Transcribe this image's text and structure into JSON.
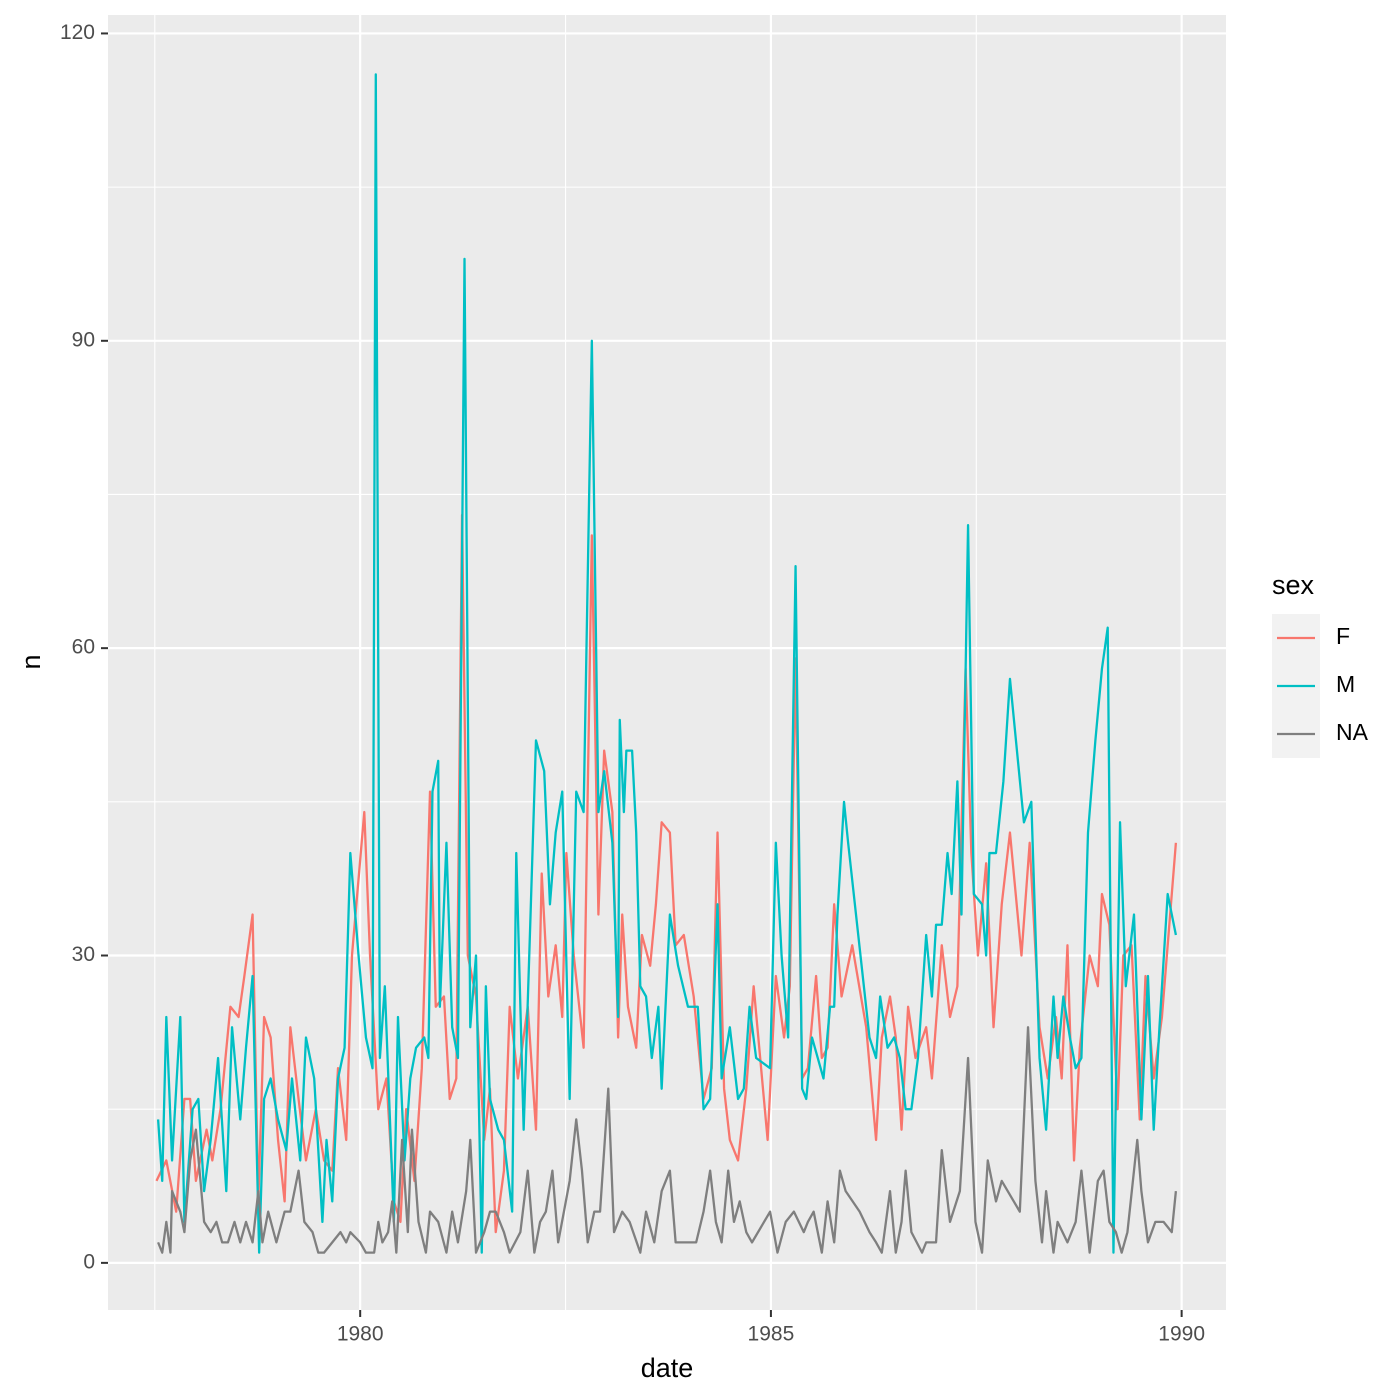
{
  "chart_data": {
    "type": "line",
    "x_label": "date",
    "y_label": "n",
    "legend_title": "sex",
    "legend_position": "right",
    "grid": true,
    "xlim": [
      1976.93,
      1990.54
    ],
    "xticks": [
      1980,
      1985,
      1990
    ],
    "minor_xticks": [
      1977.5,
      1982.5,
      1987.5
    ],
    "ylim": [
      -4.6,
      121.8
    ],
    "yticks": [
      0,
      30,
      60,
      90,
      120
    ],
    "minor_yticks": [
      15,
      45,
      75,
      105
    ],
    "series": [
      {
        "name": "F",
        "color": "#f8766d",
        "x": [
          1977.52,
          1977.64,
          1977.76,
          1977.86,
          1977.93,
          1978.0,
          1978.13,
          1978.2,
          1978.3,
          1978.42,
          1978.52,
          1978.59,
          1978.69,
          1978.76,
          1978.83,
          1978.91,
          1979.0,
          1979.08,
          1979.15,
          1979.25,
          1979.34,
          1979.46,
          1979.56,
          1979.66,
          1979.73,
          1979.83,
          1979.9,
          1980.05,
          1980.12,
          1980.22,
          1980.32,
          1980.41,
          1980.49,
          1980.56,
          1980.66,
          1980.75,
          1980.85,
          1980.92,
          1981.02,
          1981.09,
          1981.17,
          1981.24,
          1981.31,
          1981.41,
          1981.51,
          1981.58,
          1981.65,
          1981.75,
          1981.82,
          1981.92,
          1982.04,
          1982.14,
          1982.21,
          1982.29,
          1982.38,
          1982.46,
          1982.51,
          1982.6,
          1982.72,
          1982.82,
          1982.9,
          1982.97,
          1983.07,
          1983.14,
          1983.19,
          1983.26,
          1983.36,
          1983.43,
          1983.53,
          1983.6,
          1983.67,
          1983.77,
          1983.84,
          1983.94,
          1984.06,
          1984.18,
          1984.28,
          1984.35,
          1984.43,
          1984.5,
          1984.6,
          1984.7,
          1984.79,
          1984.96,
          1985.06,
          1985.16,
          1985.23,
          1985.3,
          1985.38,
          1985.45,
          1985.55,
          1985.62,
          1985.69,
          1985.77,
          1985.86,
          1985.99,
          1986.16,
          1986.28,
          1986.35,
          1986.45,
          1986.52,
          1986.59,
          1986.67,
          1986.76,
          1986.89,
          1986.96,
          1987.08,
          1987.18,
          1987.27,
          1987.37,
          1987.44,
          1987.52,
          1987.62,
          1987.71,
          1987.81,
          1987.91,
          1988.05,
          1988.15,
          1988.27,
          1988.37,
          1988.47,
          1988.54,
          1988.61,
          1988.69,
          1988.76,
          1988.88,
          1988.98,
          1989.03,
          1989.12,
          1989.22,
          1989.29,
          1989.39,
          1989.49,
          1989.56,
          1989.66,
          1989.76,
          1989.83,
          1989.93
        ],
        "values": [
          8,
          10,
          5,
          16,
          16,
          8,
          13,
          10,
          15,
          25,
          24,
          28,
          34,
          6,
          24,
          22,
          12,
          6,
          23,
          16,
          10,
          15,
          10,
          9,
          19,
          12,
          30,
          44,
          30,
          15,
          18,
          6,
          4,
          15,
          8,
          19,
          46,
          25,
          26,
          16,
          18,
          73,
          30,
          26,
          12,
          17,
          3,
          9,
          25,
          18,
          25,
          13,
          38,
          26,
          31,
          24,
          40,
          30,
          21,
          71,
          34,
          50,
          44,
          22,
          34,
          25,
          21,
          32,
          29,
          35,
          43,
          42,
          31,
          32,
          26,
          16,
          19,
          42,
          17,
          12,
          10,
          17,
          27,
          12,
          28,
          22,
          27,
          59,
          18,
          19,
          28,
          20,
          21,
          35,
          26,
          31,
          23,
          12,
          22,
          26,
          22,
          13,
          25,
          20,
          23,
          18,
          31,
          24,
          27,
          58,
          40,
          30,
          39,
          23,
          35,
          42,
          30,
          41,
          23,
          18,
          24,
          18,
          31,
          10,
          21,
          30,
          27,
          36,
          33,
          15,
          30,
          31,
          14,
          28,
          18,
          24,
          31,
          41
        ]
      },
      {
        "name": "M",
        "color": "#00bfc4",
        "x": [
          1977.54,
          1977.59,
          1977.64,
          1977.71,
          1977.81,
          1977.86,
          1977.96,
          1978.03,
          1978.1,
          1978.18,
          1978.27,
          1978.37,
          1978.44,
          1978.54,
          1978.61,
          1978.69,
          1978.77,
          1978.83,
          1978.91,
          1979.0,
          1979.1,
          1979.17,
          1979.27,
          1979.34,
          1979.44,
          1979.54,
          1979.59,
          1979.66,
          1979.73,
          1979.81,
          1979.88,
          1979.98,
          1980.07,
          1980.15,
          1980.19,
          1980.24,
          1980.3,
          1980.41,
          1980.46,
          1980.54,
          1980.61,
          1980.68,
          1980.78,
          1980.83,
          1980.88,
          1980.95,
          1980.97,
          1981.05,
          1981.12,
          1981.19,
          1981.27,
          1981.34,
          1981.41,
          1981.48,
          1981.53,
          1981.58,
          1981.68,
          1981.75,
          1981.85,
          1981.9,
          1981.99,
          1982.07,
          1982.14,
          1982.24,
          1982.31,
          1982.38,
          1982.46,
          1982.55,
          1982.63,
          1982.72,
          1982.82,
          1982.9,
          1982.97,
          1983.07,
          1983.14,
          1983.16,
          1983.21,
          1983.24,
          1983.31,
          1983.36,
          1983.41,
          1983.48,
          1983.55,
          1983.63,
          1983.67,
          1983.77,
          1983.87,
          1983.99,
          1984.11,
          1984.18,
          1984.26,
          1984.35,
          1984.4,
          1984.5,
          1984.6,
          1984.67,
          1984.74,
          1984.82,
          1984.99,
          1985.06,
          1985.13,
          1985.21,
          1985.3,
          1985.38,
          1985.43,
          1985.5,
          1985.57,
          1985.64,
          1985.72,
          1985.77,
          1985.81,
          1985.89,
          1985.94,
          1986.2,
          1986.28,
          1986.33,
          1986.42,
          1986.5,
          1986.57,
          1986.64,
          1986.71,
          1986.79,
          1986.89,
          1986.96,
          1987.01,
          1987.08,
          1987.15,
          1987.2,
          1987.27,
          1987.32,
          1987.4,
          1987.47,
          1987.57,
          1987.62,
          1987.66,
          1987.74,
          1987.83,
          1987.91,
          1988.08,
          1988.17,
          1988.27,
          1988.35,
          1988.44,
          1988.49,
          1988.56,
          1988.64,
          1988.71,
          1988.78,
          1988.86,
          1988.95,
          1989.03,
          1989.1,
          1989.17,
          1989.25,
          1989.32,
          1989.42,
          1989.51,
          1989.59,
          1989.66,
          1989.73,
          1989.83,
          1989.93
        ],
        "values": [
          14,
          8,
          24,
          10,
          24,
          4,
          15,
          16,
          7,
          12,
          20,
          7,
          23,
          14,
          21,
          28,
          1,
          16,
          18,
          14,
          11,
          18,
          10,
          22,
          18,
          4,
          12,
          6,
          18,
          21,
          40,
          30,
          22,
          19,
          116,
          20,
          27,
          4,
          24,
          10,
          18,
          21,
          22,
          20,
          46,
          49,
          25,
          41,
          23,
          20,
          98,
          23,
          30,
          1,
          27,
          16,
          13,
          12,
          5,
          40,
          13,
          33,
          51,
          48,
          35,
          42,
          46,
          16,
          46,
          44,
          90,
          44,
          48,
          41,
          24,
          53,
          44,
          50,
          50,
          42,
          27,
          26,
          20,
          25,
          17,
          34,
          29,
          25,
          25,
          15,
          16,
          35,
          18,
          23,
          16,
          17,
          25,
          20,
          19,
          41,
          30,
          22,
          68,
          17,
          16,
          22,
          20,
          18,
          25,
          25,
          34,
          45,
          41,
          22,
          20,
          26,
          21,
          22,
          20,
          15,
          15,
          20,
          32,
          26,
          33,
          33,
          40,
          36,
          47,
          34,
          72,
          36,
          35,
          30,
          40,
          40,
          47,
          57,
          43,
          45,
          20,
          13,
          26,
          20,
          26,
          22,
          19,
          20,
          42,
          51,
          58,
          62,
          1,
          43,
          27,
          34,
          14,
          28,
          13,
          23,
          36,
          32
        ]
      },
      {
        "name": "NA",
        "color": "#7f7f7f",
        "x": [
          1977.54,
          1977.59,
          1977.64,
          1977.69,
          1977.71,
          1977.81,
          1977.86,
          1977.93,
          1978.0,
          1978.1,
          1978.18,
          1978.25,
          1978.32,
          1978.39,
          1978.47,
          1978.54,
          1978.61,
          1978.69,
          1978.76,
          1978.81,
          1978.88,
          1978.98,
          1979.08,
          1979.15,
          1979.25,
          1979.32,
          1979.42,
          1979.49,
          1979.56,
          1979.66,
          1979.76,
          1979.83,
          1979.88,
          1980.0,
          1980.07,
          1980.17,
          1980.22,
          1980.27,
          1980.34,
          1980.39,
          1980.44,
          1980.51,
          1980.58,
          1980.63,
          1980.71,
          1980.8,
          1980.85,
          1980.95,
          1981.05,
          1981.12,
          1981.19,
          1981.29,
          1981.34,
          1981.41,
          1981.51,
          1981.58,
          1981.65,
          1981.75,
          1981.82,
          1981.95,
          1982.04,
          1982.12,
          1982.19,
          1982.26,
          1982.34,
          1982.41,
          1982.48,
          1982.55,
          1982.63,
          1982.7,
          1982.77,
          1982.85,
          1982.92,
          1983.02,
          1983.09,
          1983.19,
          1983.28,
          1983.41,
          1983.48,
          1983.58,
          1983.67,
          1983.77,
          1983.84,
          1984.09,
          1984.18,
          1984.26,
          1984.33,
          1984.4,
          1984.48,
          1984.55,
          1984.62,
          1984.7,
          1984.77,
          1984.99,
          1985.08,
          1985.18,
          1985.28,
          1985.4,
          1985.45,
          1985.52,
          1985.62,
          1985.69,
          1985.77,
          1985.84,
          1985.91,
          1986.08,
          1986.2,
          1986.28,
          1986.35,
          1986.45,
          1986.52,
          1986.59,
          1986.64,
          1986.71,
          1986.84,
          1986.89,
          1987.01,
          1987.08,
          1987.18,
          1987.3,
          1987.4,
          1987.49,
          1987.57,
          1987.64,
          1987.74,
          1987.81,
          1988.03,
          1988.13,
          1988.22,
          1988.3,
          1988.35,
          1988.44,
          1988.49,
          1988.61,
          1988.71,
          1988.78,
          1988.88,
          1988.98,
          1989.05,
          1989.12,
          1989.2,
          1989.27,
          1989.34,
          1989.46,
          1989.51,
          1989.59,
          1989.68,
          1989.78,
          1989.88,
          1989.93
        ],
        "values": [
          2,
          1,
          4,
          1,
          7,
          5,
          3,
          10,
          13,
          4,
          3,
          4,
          2,
          2,
          4,
          2,
          4,
          2,
          7,
          2,
          5,
          2,
          5,
          5,
          9,
          4,
          3,
          1,
          1,
          2,
          3,
          2,
          3,
          2,
          1,
          1,
          4,
          2,
          3,
          6,
          1,
          12,
          3,
          13,
          4,
          1,
          5,
          4,
          1,
          5,
          2,
          7,
          12,
          1,
          3,
          5,
          5,
          3,
          1,
          3,
          9,
          1,
          4,
          5,
          9,
          2,
          5,
          8,
          14,
          9,
          2,
          5,
          5,
          17,
          3,
          5,
          4,
          1,
          5,
          2,
          7,
          9,
          2,
          2,
          5,
          9,
          4,
          2,
          9,
          4,
          6,
          3,
          2,
          5,
          1,
          4,
          5,
          3,
          4,
          5,
          1,
          6,
          2,
          9,
          7,
          5,
          3,
          2,
          1,
          7,
          1,
          4,
          9,
          3,
          1,
          2,
          2,
          11,
          4,
          7,
          20,
          4,
          1,
          10,
          6,
          8,
          5,
          23,
          8,
          2,
          7,
          1,
          4,
          2,
          4,
          9,
          1,
          8,
          9,
          4,
          3,
          1,
          3,
          12,
          7,
          2,
          4,
          4,
          3,
          7
        ]
      }
    ]
  }
}
